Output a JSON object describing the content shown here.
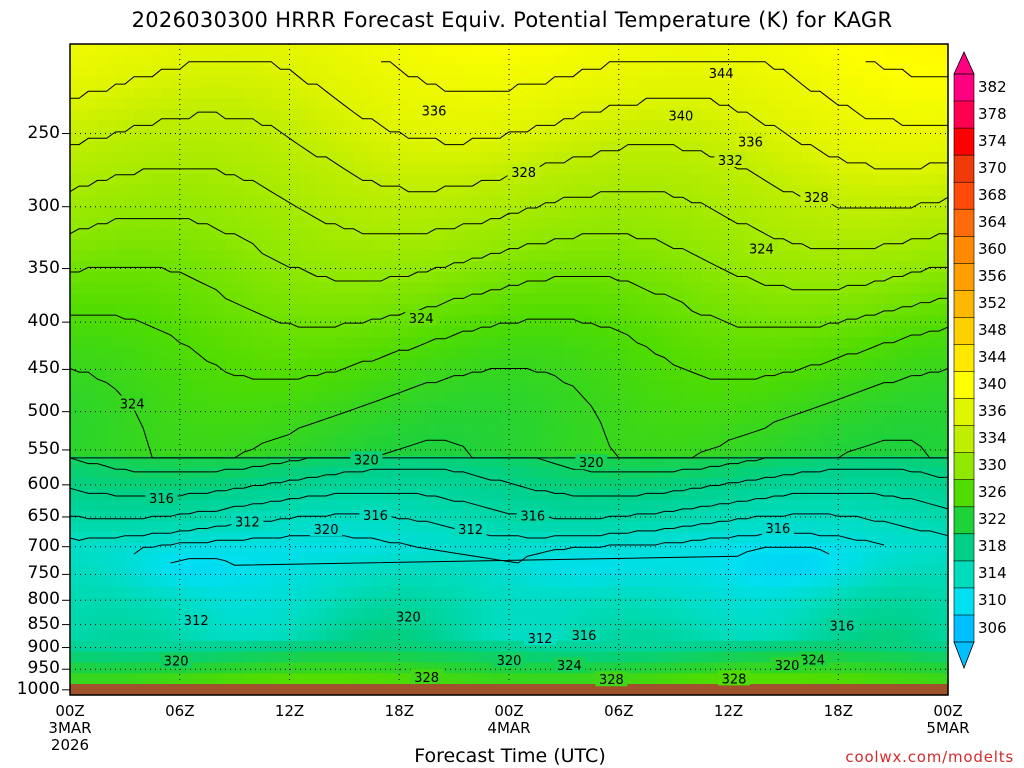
{
  "title": "2026030300 HRRR Forecast Equiv. Potential Temperature (K) for KAGR",
  "x_axis_title": "Forecast Time (UTC)",
  "credit": "coolwx.com/modelts",
  "colors": {
    "ground": "#a0522d",
    "background": "#ffffff"
  },
  "chart_data": {
    "type": "heatmap",
    "title": "2026030300 HRRR Forecast Equiv. Potential Temperature (K) for KAGR",
    "xlabel": "Forecast Time (UTC)",
    "ylabel": "",
    "x_ticks": [
      {
        "hour": 0,
        "lines": [
          "00Z",
          "3MAR",
          "2026"
        ]
      },
      {
        "hour": 6,
        "lines": [
          "06Z"
        ]
      },
      {
        "hour": 12,
        "lines": [
          "12Z"
        ]
      },
      {
        "hour": 18,
        "lines": [
          "18Z"
        ]
      },
      {
        "hour": 24,
        "lines": [
          "00Z",
          "4MAR"
        ]
      },
      {
        "hour": 30,
        "lines": [
          "06Z"
        ]
      },
      {
        "hour": 36,
        "lines": [
          "12Z"
        ]
      },
      {
        "hour": 42,
        "lines": [
          "18Z"
        ]
      },
      {
        "hour": 48,
        "lines": [
          "00Z",
          "5MAR"
        ]
      }
    ],
    "xlim": [
      0,
      48
    ],
    "y_ticks": [
      "250",
      "300",
      "350",
      "400",
      "450",
      "500",
      "550",
      "600",
      "650",
      "700",
      "750",
      "800",
      "850",
      "900",
      "950",
      "1000"
    ],
    "y_ticks_hpa": [
      250,
      300,
      350,
      400,
      450,
      500,
      550,
      600,
      650,
      700,
      750,
      800,
      850,
      900,
      950,
      1000
    ],
    "ylim_hpa": [
      200,
      1013
    ],
    "y_scale": "log-pressure",
    "grid": true,
    "colorbar": {
      "labels": [
        "382",
        "378",
        "374",
        "370",
        "368",
        "364",
        "360",
        "356",
        "352",
        "348",
        "344",
        "340",
        "336",
        "334",
        "330",
        "326",
        "322",
        "318",
        "314",
        "310",
        "306"
      ],
      "colors": [
        "#ff0080",
        "#ff0050",
        "#ff0000",
        "#f03a0a",
        "#ff4a0a",
        "#ff6a0a",
        "#ff8a00",
        "#ffa000",
        "#ffb800",
        "#ffd000",
        "#ffe800",
        "#ffff00",
        "#e0f500",
        "#c0ee00",
        "#90e800",
        "#50dc00",
        "#20d23a",
        "#00d088",
        "#00dcbc",
        "#00e0f0",
        "#00c0ff"
      ]
    },
    "contour_labels": [
      {
        "value": 344,
        "t": 35.6,
        "p": 215
      },
      {
        "value": 336,
        "t": 19.9,
        "p": 236
      },
      {
        "value": 340,
        "t": 33.4,
        "p": 239
      },
      {
        "value": 336,
        "t": 37.2,
        "p": 255
      },
      {
        "value": 332,
        "t": 36.1,
        "p": 267
      },
      {
        "value": 328,
        "t": 24.8,
        "p": 275
      },
      {
        "value": 328,
        "t": 40.8,
        "p": 293
      },
      {
        "value": 324,
        "t": 37.8,
        "p": 333
      },
      {
        "value": 324,
        "t": 19.2,
        "p": 396
      },
      {
        "value": 324,
        "t": 3.4,
        "p": 490
      },
      {
        "value": 320,
        "t": 16.2,
        "p": 563
      },
      {
        "value": 320,
        "t": 28.5,
        "p": 567
      },
      {
        "value": 316,
        "t": 5.0,
        "p": 620
      },
      {
        "value": 312,
        "t": 9.7,
        "p": 657
      },
      {
        "value": 316,
        "t": 16.7,
        "p": 647
      },
      {
        "value": 320,
        "t": 14.0,
        "p": 670
      },
      {
        "value": 312,
        "t": 21.9,
        "p": 670
      },
      {
        "value": 316,
        "t": 25.3,
        "p": 648
      },
      {
        "value": 316,
        "t": 38.7,
        "p": 668
      },
      {
        "value": 312,
        "t": 6.9,
        "p": 840
      },
      {
        "value": 320,
        "t": 18.5,
        "p": 833
      },
      {
        "value": 316,
        "t": 42.2,
        "p": 852
      },
      {
        "value": 312,
        "t": 25.7,
        "p": 879
      },
      {
        "value": 316,
        "t": 28.1,
        "p": 872
      },
      {
        "value": 320,
        "t": 5.8,
        "p": 930
      },
      {
        "value": 320,
        "t": 24.0,
        "p": 928
      },
      {
        "value": 324,
        "t": 27.3,
        "p": 940
      },
      {
        "value": 324,
        "t": 40.6,
        "p": 927
      },
      {
        "value": 320,
        "t": 39.2,
        "p": 940
      },
      {
        "value": 328,
        "t": 19.5,
        "p": 968
      },
      {
        "value": 328,
        "t": 29.6,
        "p": 974
      },
      {
        "value": 328,
        "t": 36.3,
        "p": 972
      }
    ]
  }
}
